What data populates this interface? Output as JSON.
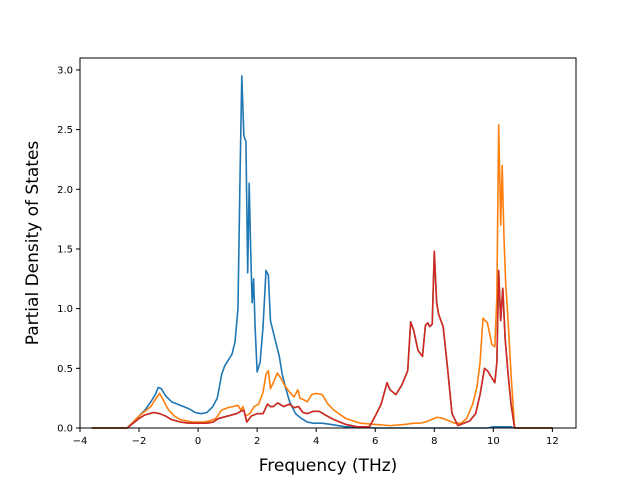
{
  "chart_data": {
    "type": "line",
    "title": "",
    "xlabel": "Frequency (THz)",
    "ylabel": "Partial Density of States",
    "xlim": [
      -4.0,
      12.8
    ],
    "ylim": [
      0,
      3.1
    ],
    "xticks": [
      -4,
      -2,
      0,
      2,
      4,
      6,
      8,
      10,
      12
    ],
    "xtick_labels": [
      "−4",
      "−2",
      "0",
      "2",
      "4",
      "6",
      "8",
      "10",
      "12"
    ],
    "yticks": [
      0.0,
      0.5,
      1.0,
      1.5,
      2.0,
      2.5,
      3.0
    ],
    "ytick_labels": [
      "0.0",
      "0.5",
      "1.0",
      "1.5",
      "2.0",
      "2.5",
      "3.0"
    ],
    "grid": false,
    "legend": "none",
    "series": [
      {
        "color": "#1f77b4",
        "x": [
          -3.6,
          -2.4,
          -2.2,
          -2.0,
          -1.8,
          -1.6,
          -1.45,
          -1.35,
          -1.25,
          -1.1,
          -0.9,
          -0.7,
          -0.5,
          -0.3,
          -0.1,
          0.1,
          0.3,
          0.5,
          0.65,
          0.8,
          0.9,
          1.0,
          1.15,
          1.25,
          1.35,
          1.42,
          1.48,
          1.55,
          1.62,
          1.68,
          1.73,
          1.78,
          1.83,
          1.88,
          1.93,
          2.0,
          2.1,
          2.2,
          2.3,
          2.38,
          2.45,
          2.55,
          2.65,
          2.75,
          2.85,
          2.95,
          3.1,
          3.3,
          3.5,
          3.7,
          3.9,
          4.2,
          4.5,
          5.0,
          5.5,
          6.0,
          6.5,
          7.0,
          7.5,
          8.0,
          8.5,
          9.0,
          9.5,
          9.8,
          10.0,
          10.2,
          10.4,
          10.6,
          10.7,
          11.0,
          12.0
        ],
        "y": [
          0.0,
          0.0,
          0.05,
          0.1,
          0.15,
          0.22,
          0.28,
          0.34,
          0.33,
          0.27,
          0.22,
          0.2,
          0.18,
          0.16,
          0.13,
          0.12,
          0.13,
          0.18,
          0.25,
          0.45,
          0.52,
          0.56,
          0.62,
          0.72,
          1.0,
          2.1,
          2.95,
          2.45,
          2.4,
          1.3,
          2.05,
          1.5,
          1.05,
          1.25,
          0.85,
          0.47,
          0.55,
          0.85,
          1.32,
          1.28,
          0.9,
          0.8,
          0.7,
          0.6,
          0.45,
          0.35,
          0.22,
          0.12,
          0.08,
          0.05,
          0.04,
          0.04,
          0.03,
          0.01,
          0.01,
          0.0,
          0.0,
          0.0,
          0.0,
          0.0,
          0.0,
          0.0,
          0.0,
          0.0,
          0.01,
          0.01,
          0.01,
          0.01,
          0.0,
          0.0,
          0.0
        ]
      },
      {
        "color": "#ff7f0e",
        "x": [
          -3.6,
          -2.4,
          -2.2,
          -2.0,
          -1.8,
          -1.6,
          -1.45,
          -1.3,
          -1.15,
          -1.0,
          -0.8,
          -0.6,
          -0.4,
          -0.2,
          0.0,
          0.2,
          0.4,
          0.6,
          0.8,
          1.0,
          1.2,
          1.35,
          1.45,
          1.52,
          1.6,
          1.75,
          1.9,
          2.05,
          2.2,
          2.3,
          2.38,
          2.45,
          2.55,
          2.68,
          2.8,
          2.95,
          3.1,
          3.25,
          3.38,
          3.45,
          3.55,
          3.7,
          3.85,
          4.0,
          4.2,
          4.4,
          4.6,
          5.0,
          5.5,
          6.0,
          6.5,
          7.0,
          7.3,
          7.5,
          7.7,
          7.9,
          8.1,
          8.3,
          8.5,
          8.7,
          8.9,
          9.1,
          9.3,
          9.45,
          9.55,
          9.65,
          9.8,
          9.95,
          10.05,
          10.12,
          10.18,
          10.25,
          10.3,
          10.36,
          10.42,
          10.5,
          10.6,
          10.72,
          11.0,
          12.0
        ],
        "y": [
          0.0,
          0.0,
          0.05,
          0.1,
          0.14,
          0.18,
          0.24,
          0.29,
          0.22,
          0.15,
          0.1,
          0.07,
          0.06,
          0.05,
          0.05,
          0.05,
          0.06,
          0.08,
          0.15,
          0.17,
          0.18,
          0.19,
          0.15,
          0.18,
          0.1,
          0.12,
          0.18,
          0.2,
          0.3,
          0.45,
          0.48,
          0.33,
          0.38,
          0.46,
          0.42,
          0.35,
          0.3,
          0.26,
          0.32,
          0.25,
          0.24,
          0.22,
          0.28,
          0.29,
          0.28,
          0.2,
          0.15,
          0.08,
          0.04,
          0.03,
          0.02,
          0.03,
          0.04,
          0.04,
          0.05,
          0.07,
          0.09,
          0.08,
          0.06,
          0.04,
          0.04,
          0.08,
          0.2,
          0.35,
          0.55,
          0.92,
          0.88,
          0.7,
          0.68,
          1.1,
          2.54,
          1.7,
          2.2,
          1.6,
          1.2,
          0.9,
          0.45,
          0.0,
          0.0,
          0.0
        ]
      },
      {
        "color": "#2ca02c",
        "x": [
          -3.6,
          -2.4,
          -2.2,
          -2.0,
          -1.8,
          -1.5,
          -1.3,
          -1.1,
          -0.9,
          -0.6,
          -0.3,
          0.0,
          0.3,
          0.5,
          0.7,
          1.0,
          1.3,
          1.45,
          1.55,
          1.65,
          1.8,
          2.0,
          2.2,
          2.35,
          2.45,
          2.55,
          2.7,
          2.9,
          3.1,
          3.25,
          3.4,
          3.55,
          3.7,
          3.9,
          4.1,
          4.3,
          4.6,
          5.0,
          5.4,
          5.8,
          6.0,
          6.2,
          6.4,
          6.5,
          6.7,
          6.9,
          7.1,
          7.2,
          7.3,
          7.45,
          7.6,
          7.7,
          7.78,
          7.85,
          7.93,
          8.0,
          8.08,
          8.15,
          8.3,
          8.45,
          8.6,
          8.8,
          9.0,
          9.2,
          9.4,
          9.55,
          9.7,
          9.8,
          9.95,
          10.05,
          10.12,
          10.18,
          10.25,
          10.32,
          10.4,
          10.5,
          10.6,
          10.72,
          11.0,
          12.0
        ],
        "y": [
          0.0,
          0.0,
          0.04,
          0.08,
          0.11,
          0.13,
          0.12,
          0.1,
          0.07,
          0.05,
          0.04,
          0.04,
          0.04,
          0.05,
          0.08,
          0.1,
          0.12,
          0.14,
          0.15,
          0.05,
          0.1,
          0.12,
          0.12,
          0.2,
          0.18,
          0.18,
          0.21,
          0.18,
          0.2,
          0.17,
          0.18,
          0.13,
          0.12,
          0.14,
          0.14,
          0.11,
          0.07,
          0.03,
          0.01,
          0.01,
          0.1,
          0.2,
          0.38,
          0.32,
          0.28,
          0.36,
          0.48,
          0.89,
          0.82,
          0.65,
          0.6,
          0.86,
          0.88,
          0.85,
          0.87,
          1.48,
          1.05,
          0.95,
          0.85,
          0.5,
          0.12,
          0.02,
          0.04,
          0.06,
          0.12,
          0.28,
          0.5,
          0.48,
          0.42,
          0.38,
          0.55,
          1.32,
          0.9,
          1.17,
          0.75,
          0.45,
          0.2,
          0.0,
          0.0,
          0.0
        ]
      },
      {
        "color": "#d62728",
        "x": [
          -3.6,
          -2.4,
          -2.2,
          -2.0,
          -1.8,
          -1.5,
          -1.3,
          -1.1,
          -0.9,
          -0.6,
          -0.3,
          0.0,
          0.3,
          0.5,
          0.7,
          1.0,
          1.3,
          1.45,
          1.55,
          1.65,
          1.8,
          2.0,
          2.2,
          2.35,
          2.45,
          2.55,
          2.7,
          2.9,
          3.1,
          3.25,
          3.4,
          3.55,
          3.7,
          3.9,
          4.1,
          4.3,
          4.6,
          5.0,
          5.4,
          5.8,
          6.0,
          6.2,
          6.4,
          6.5,
          6.7,
          6.9,
          7.1,
          7.2,
          7.3,
          7.45,
          7.6,
          7.7,
          7.78,
          7.85,
          7.93,
          8.0,
          8.08,
          8.15,
          8.3,
          8.45,
          8.6,
          8.8,
          9.0,
          9.2,
          9.4,
          9.55,
          9.7,
          9.8,
          9.95,
          10.05,
          10.12,
          10.18,
          10.25,
          10.32,
          10.4,
          10.5,
          10.6,
          10.72,
          11.0,
          12.0
        ],
        "y": [
          0.0,
          0.0,
          0.04,
          0.08,
          0.11,
          0.13,
          0.12,
          0.1,
          0.07,
          0.05,
          0.04,
          0.04,
          0.04,
          0.05,
          0.08,
          0.1,
          0.12,
          0.14,
          0.15,
          0.05,
          0.1,
          0.12,
          0.12,
          0.2,
          0.18,
          0.18,
          0.21,
          0.18,
          0.2,
          0.17,
          0.18,
          0.13,
          0.12,
          0.14,
          0.14,
          0.11,
          0.07,
          0.03,
          0.01,
          0.01,
          0.1,
          0.2,
          0.38,
          0.32,
          0.28,
          0.36,
          0.48,
          0.89,
          0.82,
          0.65,
          0.6,
          0.86,
          0.88,
          0.85,
          0.87,
          1.48,
          1.05,
          0.95,
          0.85,
          0.5,
          0.12,
          0.02,
          0.04,
          0.06,
          0.12,
          0.28,
          0.5,
          0.48,
          0.42,
          0.38,
          0.55,
          1.32,
          0.9,
          1.17,
          0.75,
          0.45,
          0.2,
          0.0,
          0.0,
          0.0
        ]
      }
    ]
  }
}
